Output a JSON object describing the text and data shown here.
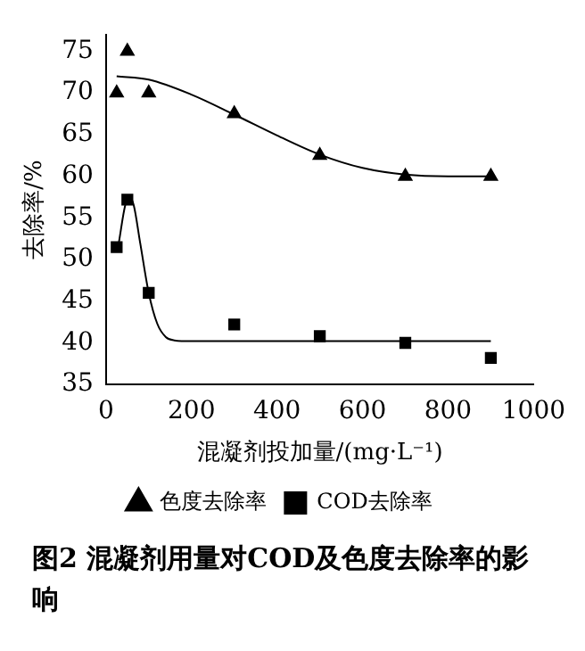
{
  "chart_data": {
    "type": "scatter",
    "xlabel": "混凝剂投加量/(mg·L⁻¹)",
    "ylabel": "去除率/%",
    "xlim": [
      0,
      1000
    ],
    "xticks": [
      0,
      200,
      400,
      600,
      800,
      1000
    ],
    "ylim": [
      35,
      77
    ],
    "yticks": [
      35,
      40,
      45,
      50,
      55,
      60,
      65,
      70,
      75
    ],
    "grid": false,
    "legend": "bottom",
    "annotations": [
      "图2 混凝剂用量对COD及色度去除率的影响"
    ],
    "series": [
      {
        "name": "色度去除率",
        "type": "scatter",
        "marker": "triangle",
        "color": "#000000",
        "x": [
          25,
          50,
          100,
          300,
          500,
          700,
          900
        ],
        "values": [
          70,
          75,
          70,
          67.5,
          62.5,
          60,
          60
        ]
      },
      {
        "name": "COD去除率",
        "type": "scatter",
        "marker": "square",
        "color": "#000000",
        "x": [
          25,
          50,
          100,
          300,
          500,
          700,
          900
        ],
        "values": [
          51.5,
          57.2,
          46,
          42.2,
          40.8,
          40,
          38.2
        ]
      },
      {
        "type": "line",
        "marker": "none",
        "color": "#000000",
        "x": [
          25,
          100,
          200,
          300,
          400,
          500,
          600,
          700,
          800,
          900
        ],
        "values": [
          72,
          71.6,
          69.8,
          67.4,
          64.9,
          62.6,
          61,
          60.2,
          60,
          60
        ]
      },
      {
        "type": "line",
        "marker": "none",
        "color": "#000000",
        "x": [
          30,
          45,
          55,
          65,
          80,
          100,
          120,
          140,
          160,
          200,
          400,
          600,
          900
        ],
        "values": [
          52,
          56.5,
          57.5,
          56.5,
          52,
          46,
          42.3,
          40.7,
          40.3,
          40.2,
          40.2,
          40.2,
          40.2
        ]
      }
    ]
  }
}
